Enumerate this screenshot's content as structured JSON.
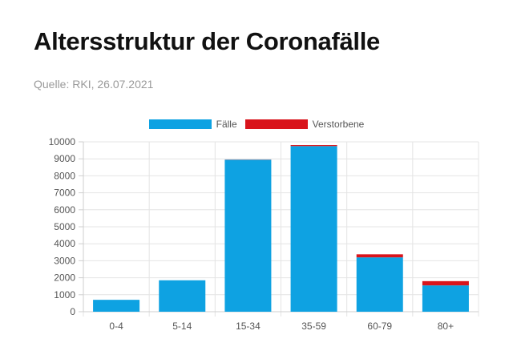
{
  "header": {
    "title": "Altersstruktur der Coronafälle",
    "subtitle": "Quelle: RKI, 26.07.2021"
  },
  "chart_data": {
    "type": "bar",
    "stacked": true,
    "categories": [
      "0-4",
      "5-14",
      "15-34",
      "35-59",
      "60-79",
      "80+"
    ],
    "series": [
      {
        "name": "Fälle",
        "color": "#0ea2e2",
        "values": [
          700,
          1850,
          8950,
          9750,
          3200,
          1550
        ]
      },
      {
        "name": "Verstorbene",
        "color": "#d9141b",
        "values": [
          0,
          0,
          10,
          60,
          180,
          250
        ]
      }
    ],
    "ylim": [
      0,
      10000
    ],
    "yticks": [
      0,
      1000,
      2000,
      3000,
      4000,
      5000,
      6000,
      7000,
      8000,
      9000,
      10000
    ],
    "grid": true,
    "legend_position": "top-center"
  }
}
